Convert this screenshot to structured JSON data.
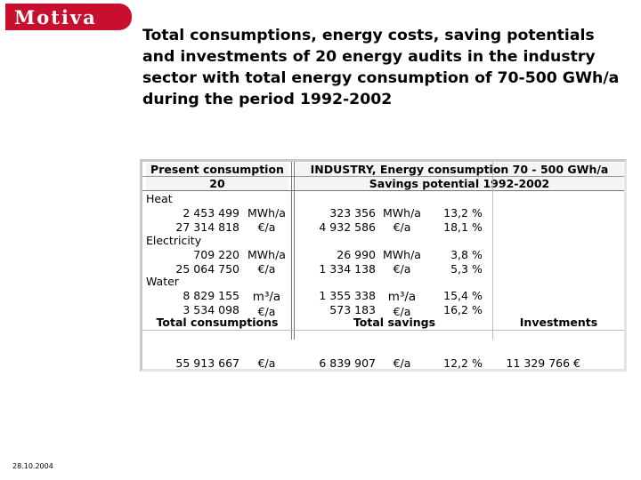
{
  "logo": {
    "text": "Motiva",
    "color": "#c8102e"
  },
  "title": "Total consumptions, energy costs, saving potentials and investments of 20 energy audits in the industry sector with total energy consumption of 70-500 GWh/a during the period 1992-2002",
  "table": {
    "header": {
      "left_line1": "Present consumption",
      "left_line2": "20",
      "right_line1": "INDUSTRY, Energy consumption 70 - 500 GWh/a",
      "right_line2": "Savings potential 1992-2002"
    },
    "sections": {
      "heat": {
        "label": "Heat",
        "row1": {
          "value": "2 453 499",
          "unit": "MWh/a",
          "saving": "323 356",
          "saving_unit": "MWh/a",
          "pct": "13,2",
          "pct_unit": "%"
        },
        "row2": {
          "value": "27 314 818",
          "unit": "€/a",
          "saving": "4 932 586",
          "saving_unit": "€/a",
          "pct": "18,1",
          "pct_unit": "%"
        }
      },
      "electricity": {
        "label": "Electricity",
        "row1": {
          "value": "709 220",
          "unit": "MWh/a",
          "saving": "26 990",
          "saving_unit": "MWh/a",
          "pct": "3,8",
          "pct_unit": "%"
        },
        "row2": {
          "value": "25 064 750",
          "unit": "€/a",
          "saving": "1 334 138",
          "saving_unit": "€/a",
          "pct": "5,3",
          "pct_unit": "%"
        }
      },
      "water": {
        "label": "Water",
        "row1": {
          "value": "8 829 155",
          "unit": "m³/a",
          "saving": "1 355 338",
          "saving_unit": "m³/a",
          "pct": "15,4",
          "pct_unit": "%"
        },
        "row2": {
          "value": "3 534 098",
          "unit": "€/a",
          "saving": "573 183",
          "saving_unit": "€/a",
          "pct": "16,2",
          "pct_unit": "%"
        }
      }
    },
    "totals_header": {
      "consumptions": "Total consumptions",
      "savings": "Total savings",
      "investments": "Investments"
    },
    "totals": {
      "consumption": "55 913 667",
      "consumption_unit": "€/a",
      "savings": "6 839 907",
      "savings_unit": "€/a",
      "pct": "12,2",
      "pct_unit": "%",
      "investments": "11 329 766 €"
    }
  },
  "footer": {
    "date": "28.10.2004"
  }
}
